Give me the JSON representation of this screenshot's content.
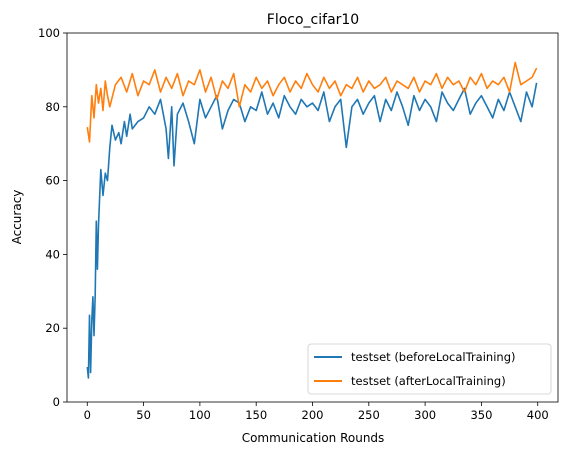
{
  "chart_data": {
    "type": "line",
    "title": "Floco_cifar10",
    "xlabel": "Communication Rounds",
    "ylabel": "Accuracy",
    "xlim": [
      -18,
      418
    ],
    "ylim": [
      0,
      100
    ],
    "xticks": [
      0,
      50,
      100,
      150,
      200,
      250,
      300,
      350,
      400
    ],
    "yticks": [
      0,
      20,
      40,
      60,
      80,
      100
    ],
    "grid": false,
    "legend_position": "lower right",
    "series": [
      {
        "name": "testset (beforeLocalTraining)",
        "color": "#1f77b4",
        "x": [
          0,
          1,
          2,
          3,
          4,
          5,
          6,
          7,
          8,
          9,
          10,
          12,
          14,
          16,
          18,
          20,
          22,
          25,
          28,
          30,
          33,
          35,
          38,
          40,
          45,
          50,
          55,
          60,
          65,
          70,
          72,
          75,
          77,
          80,
          85,
          90,
          95,
          100,
          105,
          110,
          115,
          120,
          125,
          130,
          135,
          140,
          145,
          150,
          155,
          160,
          165,
          170,
          175,
          180,
          185,
          190,
          195,
          200,
          205,
          210,
          215,
          220,
          225,
          230,
          235,
          240,
          245,
          250,
          255,
          260,
          265,
          270,
          275,
          280,
          285,
          290,
          295,
          300,
          305,
          310,
          315,
          320,
          325,
          330,
          335,
          340,
          345,
          350,
          355,
          360,
          365,
          370,
          375,
          380,
          385,
          390,
          395,
          399
        ],
        "y": [
          9.5,
          6.5,
          23.5,
          8,
          22,
          28.5,
          18,
          29,
          49,
          36,
          48,
          63,
          56,
          62,
          60,
          69,
          75,
          71,
          73,
          70,
          76,
          72,
          78,
          74,
          76,
          77,
          80,
          78,
          82,
          74,
          66,
          80,
          64,
          78,
          81,
          76,
          70,
          82,
          77,
          80,
          83,
          74,
          79,
          82,
          81,
          76,
          80,
          79,
          84,
          78,
          81,
          77,
          83,
          80,
          78,
          82,
          80,
          81,
          79,
          84,
          76,
          80,
          82,
          69,
          80,
          82,
          78,
          81,
          83,
          76,
          82,
          79,
          84,
          80,
          75,
          83,
          79,
          82,
          80,
          76,
          84,
          81,
          79,
          82,
          85,
          78,
          81,
          83,
          80,
          77,
          82,
          79,
          84,
          80,
          76,
          84,
          80,
          86.5
        ]
      },
      {
        "name": "testset (afterLocalTraining)",
        "color": "#ff7f0e",
        "x": [
          0,
          2,
          4,
          6,
          8,
          10,
          12,
          14,
          16,
          18,
          20,
          25,
          30,
          35,
          40,
          45,
          50,
          55,
          60,
          65,
          70,
          75,
          80,
          85,
          90,
          95,
          100,
          105,
          110,
          115,
          120,
          125,
          130,
          135,
          140,
          145,
          150,
          155,
          160,
          165,
          170,
          175,
          180,
          185,
          190,
          195,
          200,
          205,
          210,
          215,
          220,
          225,
          230,
          235,
          240,
          245,
          250,
          255,
          260,
          265,
          270,
          275,
          280,
          285,
          290,
          295,
          300,
          305,
          310,
          315,
          320,
          325,
          330,
          335,
          340,
          345,
          350,
          355,
          360,
          365,
          370,
          375,
          380,
          385,
          390,
          395,
          399
        ],
        "y": [
          74.5,
          70.5,
          83,
          77,
          86,
          81,
          85,
          79,
          87,
          83,
          80,
          86,
          88,
          84,
          89,
          83,
          87,
          86,
          90,
          84,
          88,
          85,
          89,
          83,
          87,
          86,
          90,
          84,
          88,
          82,
          87,
          85,
          89,
          80,
          86,
          84,
          88,
          85,
          87,
          83,
          86,
          88,
          84,
          87,
          85,
          89,
          86,
          84,
          88,
          85,
          87,
          83,
          86,
          85,
          88,
          84,
          87,
          85,
          86,
          88,
          84,
          87,
          86,
          85,
          88,
          84,
          87,
          86,
          89,
          85,
          88,
          86,
          87,
          84,
          88,
          86,
          89,
          85,
          87,
          86,
          88,
          84,
          92,
          86,
          87,
          88,
          90.5
        ]
      }
    ]
  }
}
